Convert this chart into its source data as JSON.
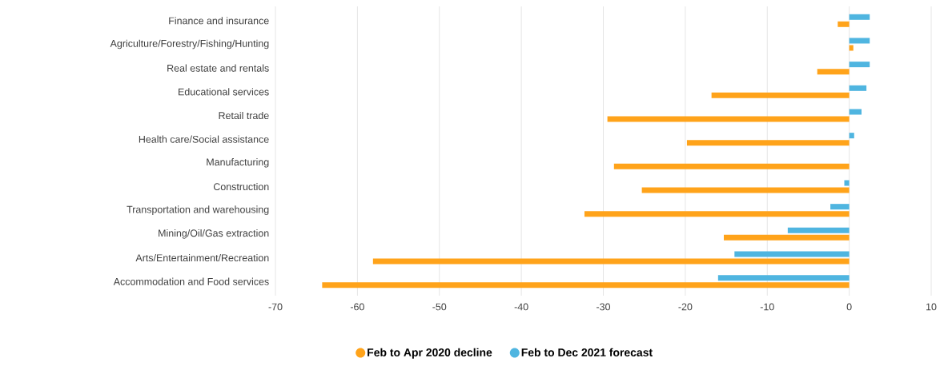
{
  "chart_data": {
    "type": "bar",
    "orientation": "horizontal",
    "categories": [
      "Finance and insurance",
      "Agriculture/Forestry/Fishing/Hunting",
      "Real estate and rentals",
      "Educational services",
      "Retail trade",
      "Health care/Social assistance",
      "Manufacturing",
      "Construction",
      "Transportation and warehousing",
      "Mining/Oil/Gas extraction",
      "Arts/Entertainment/Recreation",
      "Accommodation and Food services"
    ],
    "series": [
      {
        "name": "Feb to Apr 2020 decline",
        "color": "#ffa31a",
        "values": [
          -1.4,
          0.5,
          -3.9,
          -16.8,
          -29.5,
          -19.8,
          -28.7,
          -25.3,
          -32.3,
          -15.3,
          -58.1,
          -64.3
        ]
      },
      {
        "name": "Feb to Dec 2021 forecast",
        "color": "#4fb5e0",
        "values": [
          2.5,
          2.5,
          2.5,
          2.1,
          1.5,
          0.6,
          null,
          -0.6,
          -2.3,
          -7.5,
          -14.0,
          -16.0
        ]
      }
    ],
    "xlim": [
      -70,
      10
    ],
    "xticks": [
      -70,
      -60,
      -50,
      -40,
      -30,
      -20,
      -10,
      0,
      10
    ],
    "grid": "x",
    "legend": "bottom"
  }
}
